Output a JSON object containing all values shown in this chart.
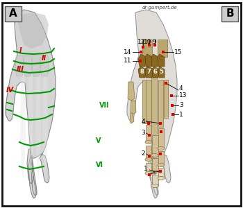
{
  "watermark": "dr-gumpert.de",
  "bg_outer": "#ffffff",
  "bg_inner": "#f5f5f5",
  "border_color": "#111111",
  "gray_hand": "#c8c8c8",
  "gray_hand_light": "#e0e0e0",
  "gray_shading": "#aaaaaa",
  "bone_tan": "#d4c5a0",
  "bone_dark": "#8b7040",
  "bone_shadow": "#6b5030",
  "carpal_dark": "#6b5020",
  "carpal_mid": "#9b7830",
  "green": "#009900",
  "red_label": "#cc0000",
  "red_dot": "#dd0000",
  "black": "#000000",
  "label_A": "A",
  "label_B": "B",
  "figsize": [
    3.5,
    3.0
  ],
  "dpi": 100
}
